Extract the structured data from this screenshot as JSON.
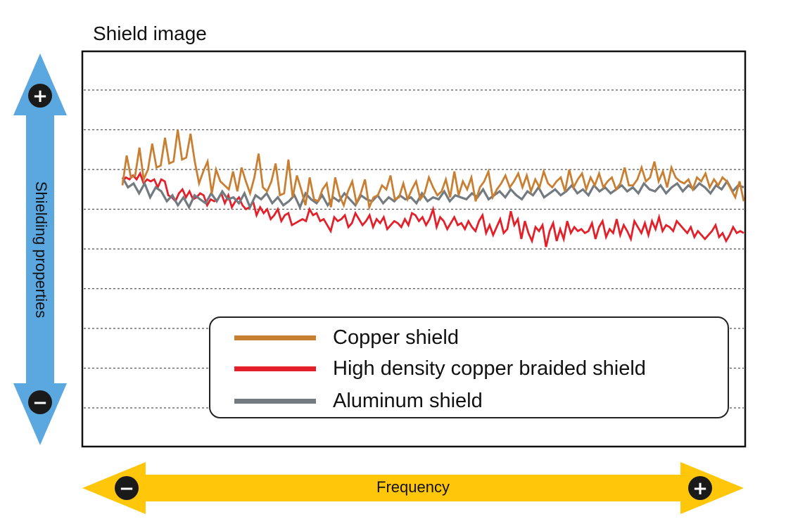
{
  "chart_data": {
    "type": "line",
    "title": "Shield image",
    "xlabel": "Frequency",
    "ylabel": "Shielding properties",
    "grid": true,
    "legend_position": "bottom-center",
    "series": [
      {
        "name": "Copper shield",
        "color": "#C97F32",
        "values": [
          5.6,
          6.35,
          5.8,
          5.85,
          6.55,
          5.75,
          6.0,
          6.65,
          6.05,
          6.1,
          6.8,
          6.15,
          6.2,
          7.0,
          6.25,
          6.3,
          6.9,
          6.2,
          5.65,
          5.95,
          6.2,
          5.4,
          6.0,
          5.7,
          5.6,
          5.5,
          5.95,
          5.45,
          6.05,
          5.7,
          5.4,
          5.8,
          6.4,
          5.55,
          5.45,
          5.7,
          6.15,
          5.35,
          5.4,
          6.25,
          5.3,
          5.85,
          5.5,
          5.1,
          5.8,
          5.25,
          5.2,
          5.5,
          5.65,
          5.05,
          5.8,
          5.35,
          5.1,
          5.45,
          5.7,
          5.15,
          5.4,
          5.75,
          5.05,
          5.3,
          5.35,
          5.6,
          5.5,
          5.85,
          5.25,
          5.3,
          5.65,
          5.25,
          5.5,
          5.7,
          5.25,
          5.4,
          5.8,
          5.55,
          5.35,
          5.45,
          5.75,
          5.3,
          5.95,
          5.35,
          5.7,
          5.5,
          5.8,
          5.2,
          5.55,
          5.7,
          5.95,
          5.3,
          5.5,
          5.65,
          5.85,
          5.55,
          5.7,
          5.9,
          5.55,
          5.85,
          5.45,
          5.75,
          5.55,
          5.95,
          5.65,
          5.55,
          5.7,
          5.8,
          5.45,
          6.0,
          5.55,
          5.75,
          5.9,
          5.5,
          5.8,
          5.6,
          5.9,
          5.55,
          5.7,
          5.8,
          5.5,
          5.65,
          6.05,
          5.6,
          5.6,
          5.75,
          6.05,
          5.7,
          5.8,
          6.2,
          5.7,
          5.95,
          5.55,
          6.05,
          5.8,
          5.7,
          5.65,
          5.75,
          5.5,
          5.8,
          5.7,
          5.9,
          5.55,
          5.75,
          5.6,
          5.8,
          5.7,
          5.5,
          5.3,
          5.7,
          5.2
        ]
      },
      {
        "name": "High density copper braided shield",
        "color": "#E3202A",
        "values": [
          5.7,
          5.8,
          5.75,
          5.85,
          5.75,
          5.9,
          5.65,
          5.75,
          5.7,
          5.75,
          5.55,
          5.75,
          5.7,
          5.35,
          5.3,
          5.2,
          5.4,
          5.5,
          5.3,
          5.45,
          5.25,
          5.3,
          5.4,
          5.35,
          5.1,
          5.25,
          5.2,
          5.25,
          5.4,
          5.15,
          5.35,
          5.05,
          5.2,
          5.3,
          5.1,
          5.0,
          5.05,
          5.2,
          4.85,
          5.05,
          4.9,
          5.0,
          4.75,
          4.85,
          5.0,
          4.7,
          4.85,
          4.9,
          4.6,
          4.65,
          4.7,
          4.75,
          4.7,
          5.0,
          4.85,
          4.9,
          4.7,
          4.75,
          4.6,
          4.45,
          4.8,
          4.7,
          4.75,
          4.85,
          4.55,
          4.65,
          4.9,
          4.75,
          4.6,
          4.7,
          4.85,
          4.55,
          4.75,
          4.65,
          4.8,
          4.5,
          4.6,
          4.7,
          4.65,
          4.55,
          4.75,
          4.6,
          4.9,
          4.85,
          4.7,
          4.8,
          4.6,
          4.75,
          5.0,
          4.55,
          4.8,
          4.7,
          4.5,
          4.65,
          4.8,
          4.6,
          4.65,
          4.5,
          4.7,
          4.55,
          4.45,
          4.7,
          4.85,
          4.4,
          4.6,
          4.35,
          4.55,
          4.75,
          4.4,
          4.5,
          4.95,
          4.6,
          4.75,
          4.25,
          4.7,
          4.4,
          4.2,
          4.55,
          4.45,
          4.6,
          4.05,
          4.45,
          4.65,
          4.2,
          4.5,
          4.25,
          4.7,
          4.4,
          4.55,
          4.45,
          4.5,
          4.4,
          4.45,
          4.65,
          4.25,
          4.55,
          4.7,
          4.3,
          4.5,
          4.4,
          4.75,
          4.35,
          4.6,
          4.45,
          4.25,
          4.7,
          4.55,
          4.4,
          4.65,
          4.35,
          4.7,
          4.5,
          4.8,
          4.45,
          4.6,
          4.55,
          4.45,
          4.7,
          4.6,
          4.5,
          4.4,
          4.55,
          4.3,
          4.45,
          4.35,
          4.25,
          4.35,
          4.45,
          4.6,
          4.3,
          4.4,
          4.2,
          4.35,
          4.55,
          4.4,
          4.45,
          4.4
        ]
      },
      {
        "name": "Aluminum shield",
        "color": "#737B80",
        "values": [
          5.8,
          5.55,
          5.65,
          5.4,
          5.65,
          5.3,
          5.55,
          5.45,
          5.2,
          5.35,
          5.1,
          5.3,
          5.05,
          5.35,
          5.25,
          5.15,
          5.4,
          5.2,
          5.45,
          5.25,
          5.3,
          5.15,
          5.4,
          5.05,
          5.35,
          5.25,
          5.4,
          5.15,
          5.3,
          5.1,
          5.2,
          5.35,
          5.05,
          5.4,
          5.25,
          5.15,
          5.35,
          5.1,
          5.3,
          5.2,
          5.4,
          5.25,
          5.1,
          5.35,
          5.25,
          5.2,
          5.35,
          5.15,
          5.3,
          5.2,
          5.35,
          5.25,
          5.3,
          5.15,
          5.4,
          5.2,
          5.3,
          5.25,
          5.45,
          5.2,
          5.35,
          5.3,
          5.25,
          5.4,
          5.3,
          5.5,
          5.25,
          5.35,
          5.45,
          5.3,
          5.5,
          5.35,
          5.25,
          5.45,
          5.35,
          5.55,
          5.3,
          5.4,
          5.5,
          5.35,
          5.45,
          5.6,
          5.4,
          5.5,
          5.35,
          5.6,
          5.45,
          5.55,
          5.4,
          5.5,
          5.6,
          5.45,
          5.55,
          5.4,
          5.65,
          5.5,
          5.45,
          5.6,
          5.4,
          5.55,
          5.65,
          5.45,
          5.6,
          5.5,
          5.65,
          5.55,
          5.4,
          5.6,
          5.5,
          5.7,
          5.45,
          5.6,
          5.55
        ]
      }
    ]
  },
  "legend": {
    "items": [
      "Copper shield",
      "High density copper braided shield",
      "Aluminum shield"
    ]
  },
  "colors": {
    "vertical_arrow": "#5BA8E0",
    "horizontal_arrow": "#FFC60A",
    "badge": "#1A1A1A",
    "grid": "#555555",
    "frame": "#111111"
  },
  "badges": {
    "top": "+",
    "bottom": "−",
    "left": "−",
    "right": "+"
  }
}
